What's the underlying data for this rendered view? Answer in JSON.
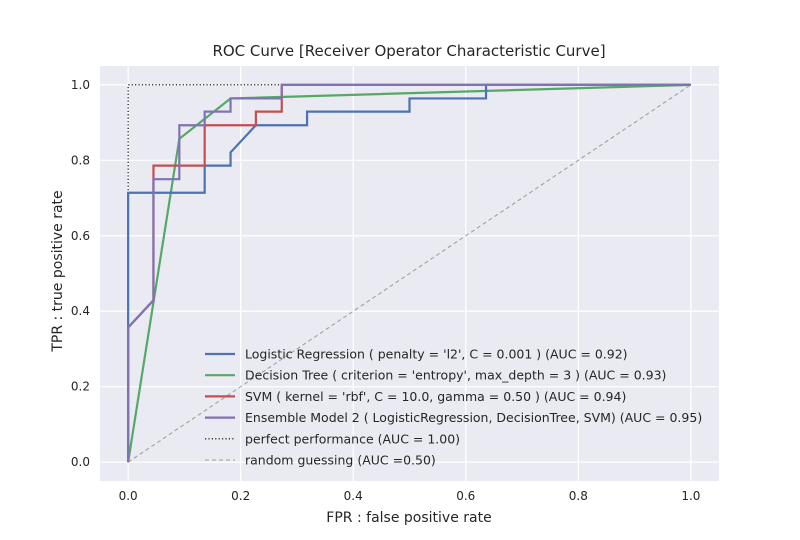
{
  "chart_data": {
    "type": "line",
    "title": "ROC Curve [Receiver Operator Characteristic Curve]",
    "xlabel": "FPR : false positive rate",
    "ylabel": "TPR : true positive rate",
    "xlim": [
      -0.05,
      1.05
    ],
    "ylim": [
      -0.05,
      1.05
    ],
    "xticks": [
      "0.0",
      "0.2",
      "0.4",
      "0.6",
      "0.8",
      "1.0"
    ],
    "yticks": [
      "0.0",
      "0.2",
      "0.4",
      "0.6",
      "0.8",
      "1.0"
    ],
    "grid": true,
    "background": "#eaeaf2",
    "legend_position": "lower-right",
    "series": [
      {
        "name": "Logistic Regression ( penalty = 'l2', C = 0.001 ) (AUC = 0.92)",
        "color": "#4c72b0",
        "style": "solid",
        "x": [
          0,
          0,
          0,
          0.136,
          0.136,
          0.182,
          0.182,
          0.227,
          0.318,
          0.318,
          0.5,
          0.5,
          0.636,
          0.636,
          1.0
        ],
        "y": [
          0,
          0.036,
          0.714,
          0.714,
          0.786,
          0.786,
          0.821,
          0.893,
          0.893,
          0.929,
          0.929,
          0.964,
          0.964,
          1.0,
          1.0
        ]
      },
      {
        "name": "Decision Tree ( criterion = 'entropy', max_depth = 3 ) (AUC = 0.93)",
        "color": "#55a868",
        "style": "solid",
        "x": [
          0,
          0.091,
          0.182,
          1.0
        ],
        "y": [
          0,
          0.857,
          0.964,
          1.0
        ]
      },
      {
        "name": "SVM ( kernel = 'rbf', C = 10.0, gamma = 0.50 ) (AUC = 0.94)",
        "color": "#c44e52",
        "style": "solid",
        "x": [
          0,
          0,
          0.045,
          0.045,
          0.136,
          0.136,
          0.227,
          0.227,
          0.273,
          0.273,
          1.0
        ],
        "y": [
          0,
          0.357,
          0.429,
          0.786,
          0.786,
          0.893,
          0.893,
          0.929,
          0.929,
          1.0,
          1.0
        ]
      },
      {
        "name": "Ensemble Model 2 ( LogisticRegression, DecisionTree, SVM) (AUC = 0.95)",
        "color": "#8172b2",
        "style": "solid",
        "x": [
          0,
          0,
          0.045,
          0.045,
          0.091,
          0.091,
          0.136,
          0.136,
          0.182,
          0.182,
          0.273,
          0.273,
          1.0
        ],
        "y": [
          0,
          0.357,
          0.429,
          0.75,
          0.75,
          0.893,
          0.893,
          0.929,
          0.929,
          0.964,
          0.964,
          1.0,
          1.0
        ]
      },
      {
        "name": "perfect performance (AUC = 1.00)",
        "color": "#000000",
        "style": "dotted",
        "x": [
          0,
          0,
          1.0
        ],
        "y": [
          0,
          1.0,
          1.0
        ]
      },
      {
        "name": "random guessing (AUC =0.50)",
        "color": "#a0a0a0",
        "style": "dashed",
        "x": [
          0,
          1.0
        ],
        "y": [
          0,
          1.0
        ]
      }
    ]
  }
}
